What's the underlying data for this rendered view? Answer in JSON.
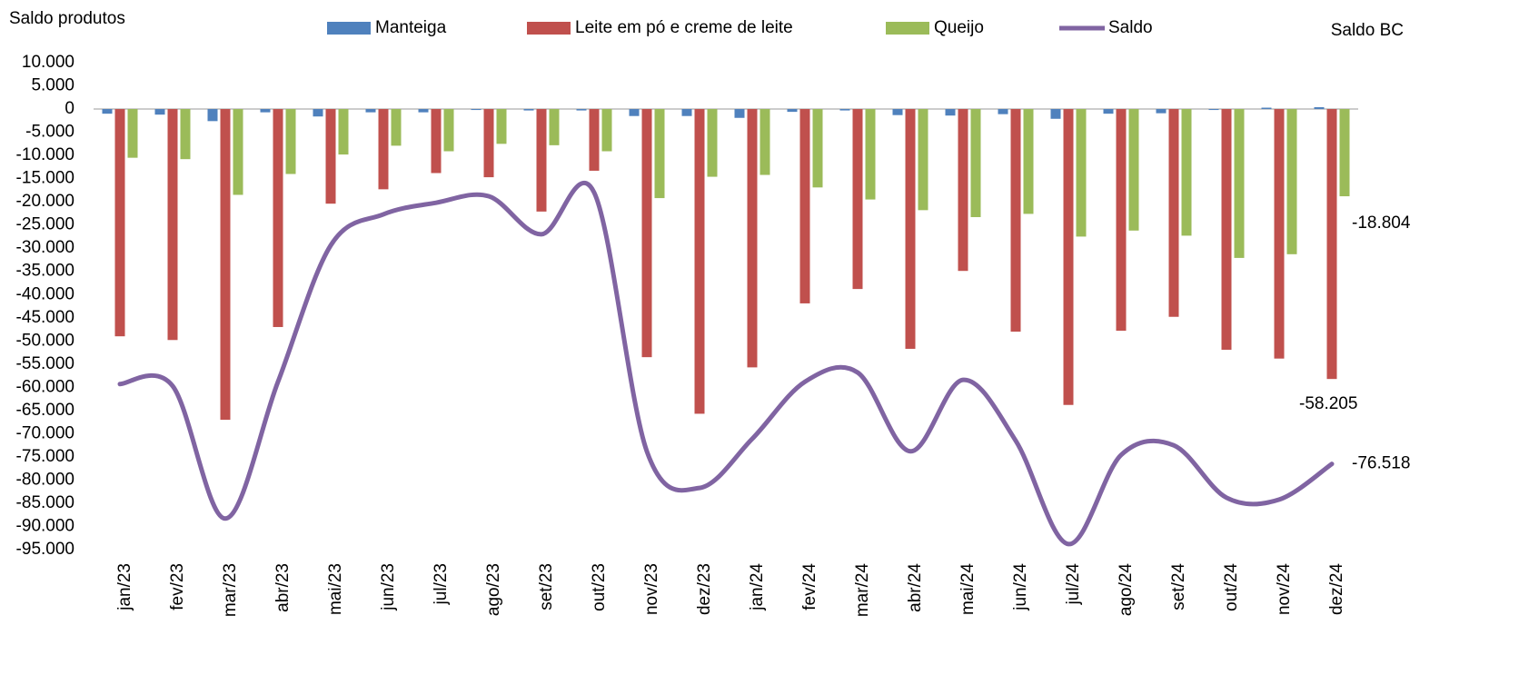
{
  "chart_data": {
    "type": "bar_line",
    "ylabel": "Saldo produtos",
    "y2label": "Saldo BC",
    "categories": [
      "jan/23",
      "fev/23",
      "mar/23",
      "abr/23",
      "mai/23",
      "jun/23",
      "jul/23",
      "ago/23",
      "set/23",
      "out/23",
      "nov/23",
      "dez/23",
      "jan/24",
      "fev/24",
      "mar/24",
      "abr/24",
      "mai/24",
      "jun/24",
      "jul/24",
      "ago/24",
      "set/24",
      "out/24",
      "nov/24",
      "dez/24"
    ],
    "series": [
      {
        "name": "Manteiga",
        "type": "bar",
        "color": "#4f81bd",
        "values": [
          -1000,
          -1200,
          -2600,
          -700,
          -1600,
          -700,
          -700,
          -200,
          -300,
          -300,
          -1500,
          -1500,
          -1900,
          -600,
          -300,
          -1300,
          -1400,
          -1100,
          -2100,
          -1000,
          -900,
          -200,
          300,
          400
        ]
      },
      {
        "name": "Leite em pó e creme de leite",
        "type": "bar",
        "color": "#c0504d",
        "values": [
          -49000,
          -49800,
          -67000,
          -47000,
          -20400,
          -17300,
          -13800,
          -14700,
          -22100,
          -13300,
          -53500,
          -65700,
          -55700,
          -41900,
          -38800,
          -51700,
          -34900,
          -48000,
          -63800,
          -47800,
          -44800,
          -51900,
          -53800,
          -58205
        ],
        "value_labels": [
          null,
          null,
          null,
          null,
          null,
          null,
          null,
          null,
          null,
          null,
          null,
          null,
          null,
          null,
          null,
          null,
          null,
          null,
          null,
          null,
          null,
          null,
          null,
          "-58.205"
        ]
      },
      {
        "name": "Queijo",
        "type": "bar",
        "color": "#9bbb59",
        "values": [
          -10500,
          -10800,
          -18500,
          -14000,
          -9800,
          -7900,
          -9100,
          -7500,
          -7800,
          -9100,
          -19200,
          -14600,
          -14200,
          -16900,
          -19500,
          -21800,
          -23300,
          -22600,
          -27500,
          -26200,
          -27300,
          -32100,
          -31300,
          -18804
        ],
        "value_labels": [
          null,
          null,
          null,
          null,
          null,
          null,
          null,
          null,
          null,
          null,
          null,
          null,
          null,
          null,
          null,
          null,
          null,
          null,
          null,
          null,
          null,
          null,
          null,
          "-18.804"
        ]
      },
      {
        "name": "Saldo",
        "type": "line",
        "color": "#8064a2",
        "values": [
          -59300,
          -59700,
          -88300,
          -58800,
          -29400,
          -22700,
          -20200,
          -18800,
          -27000,
          -18000,
          -73800,
          -81700,
          -71100,
          -58800,
          -56800,
          -73800,
          -58400,
          -71500,
          -93800,
          -74600,
          -72500,
          -83800,
          -84200,
          -76518
        ],
        "value_labels": [
          null,
          null,
          null,
          null,
          null,
          null,
          null,
          null,
          null,
          null,
          null,
          null,
          null,
          null,
          null,
          null,
          null,
          null,
          null,
          null,
          null,
          null,
          null,
          "-76.518"
        ]
      }
    ],
    "ylim": [
      -95000,
      10000
    ],
    "yticks": [
      {
        "value": 10000,
        "label": "10.000"
      },
      {
        "value": 5000,
        "label": "5.000"
      },
      0,
      {
        "value": -5000,
        "label": "-5.000"
      },
      {
        "value": -10000,
        "label": "-10.000"
      },
      {
        "value": -15000,
        "label": "-15.000"
      },
      {
        "value": -20000,
        "label": "-20.000"
      },
      {
        "value": -25000,
        "label": "-25.000"
      },
      {
        "value": -30000,
        "label": "-30.000"
      },
      {
        "value": -35000,
        "label": "-35.000"
      },
      {
        "value": -40000,
        "label": "-40.000"
      },
      {
        "value": -45000,
        "label": "-45.000"
      },
      {
        "value": -50000,
        "label": "-50.000"
      },
      {
        "value": -55000,
        "label": "-55.000"
      },
      {
        "value": -60000,
        "label": "-60.000"
      },
      {
        "value": -65000,
        "label": "-65.000"
      },
      {
        "value": -70000,
        "label": "-70.000"
      },
      {
        "value": -75000,
        "label": "-75.000"
      },
      {
        "value": -80000,
        "label": "-80.000"
      },
      {
        "value": -85000,
        "label": "-85.000"
      },
      {
        "value": -90000,
        "label": "-90.000"
      },
      {
        "value": -95000,
        "label": "-95.000"
      }
    ],
    "grid": false
  }
}
